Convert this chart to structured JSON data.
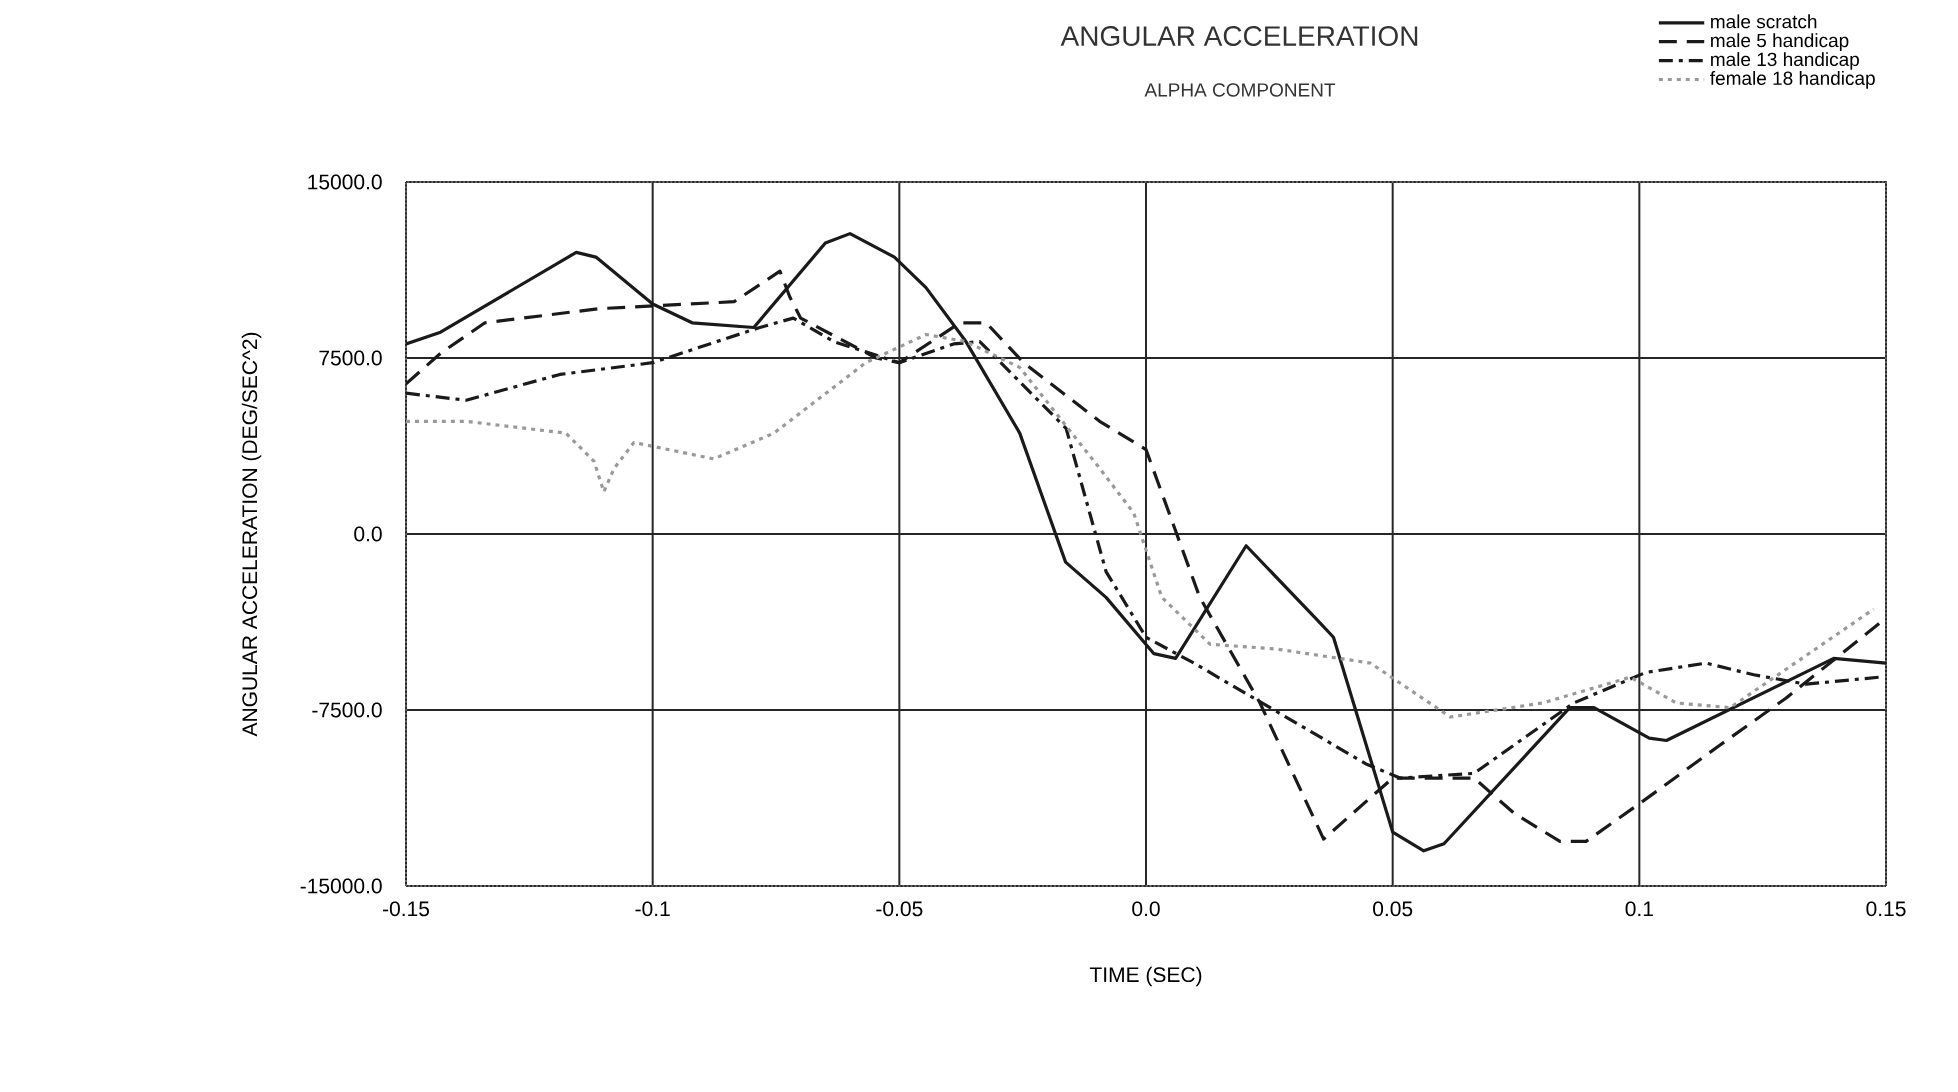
{
  "chart_data": {
    "type": "line",
    "title": "ANGULAR ACCELERATION",
    "subtitle": "ALPHA COMPONENT",
    "xlabel": "TIME (SEC)",
    "ylabel": "ANGULAR ACCELERATION (DEG/SEC^2)",
    "xlim": [
      -0.15,
      0.15
    ],
    "ylim": [
      -15000,
      15000
    ],
    "xticks": [
      -0.15,
      -0.1,
      -0.05,
      {
        "value": 0,
        "label": "0.0"
      },
      0.05,
      0.1,
      0.15
    ],
    "yticks": [
      {
        "value": -15000,
        "label": "-15000.0"
      },
      {
        "value": -7500,
        "label": "-7500.0"
      },
      {
        "value": 0,
        "label": "0.0"
      },
      {
        "value": 7500,
        "label": "7500.0"
      },
      {
        "value": 15000,
        "label": "15000.0"
      }
    ],
    "grid": true,
    "legend": "top right",
    "marker": "none",
    "series": [
      {
        "name": "male scratch",
        "color": "#1a1a1a",
        "line_style": "solid",
        "x": [
          -0.15,
          -0.143,
          -0.1155,
          -0.1115,
          -0.1,
          -0.092,
          -0.0795,
          -0.065,
          -0.06,
          -0.051,
          -0.0446,
          -0.0365,
          -0.0256,
          -0.0163,
          -0.0081,
          0.0016,
          0.006,
          0.0203,
          0.0344,
          0.038,
          0.05,
          0.0563,
          0.0604,
          0.0859,
          0.0908,
          0.102,
          0.1055,
          0.1394,
          0.15
        ],
        "values": [
          8100,
          8600,
          12000,
          11800,
          9800,
          9000,
          8800,
          12400,
          12800,
          11800,
          10500,
          8200,
          4300,
          -1200,
          -2700,
          -5100,
          -5300,
          -500,
          -3600,
          -4400,
          -12700,
          -13500,
          -13200,
          -7400,
          -7400,
          -8700,
          -8800,
          -5300,
          -5500
        ]
      },
      {
        "name": "male 5 handicap",
        "color": "#1a1a1a",
        "line_style": "dashed",
        "x": [
          -0.15,
          -0.143,
          -0.134,
          -0.111,
          -0.0835,
          -0.0742,
          -0.0722,
          -0.07,
          -0.0547,
          -0.05,
          -0.0377,
          -0.0324,
          -0.0248,
          -0.0094,
          0,
          0.0109,
          0.0231,
          0.036,
          0.05,
          0.0665,
          0.0746,
          0.0839,
          0.0892,
          0.1013,
          0.1163,
          0.1297,
          0.1487
        ],
        "values": [
          6400,
          7700,
          9000,
          9600,
          9900,
          11200,
          10100,
          9200,
          7500,
          7300,
          9000,
          9000,
          7300,
          4800,
          3600,
          -2700,
          -7200,
          -13000,
          -10400,
          -10400,
          -11900,
          -13100,
          -13100,
          -11300,
          -9000,
          -7000,
          -3800
        ]
      },
      {
        "name": "male 13 handicap",
        "color": "#1a1a1a",
        "line_style": "dashdot",
        "x": [
          -0.15,
          -0.1378,
          -0.1188,
          -0.1,
          -0.0783,
          -0.0715,
          -0.0633,
          -0.05,
          -0.039,
          -0.0337,
          -0.0162,
          -0.0081,
          0,
          0.0097,
          0.0219,
          0.0446,
          0.0515,
          0.0665,
          0.0867,
          0.1013,
          0.1135,
          0.1232,
          0.1338,
          0.1487
        ],
        "values": [
          6000,
          5700,
          6800,
          7300,
          8800,
          9200,
          8200,
          7300,
          8100,
          8200,
          4500,
          -1600,
          -4400,
          -5500,
          -7000,
          -9800,
          -10400,
          -10200,
          -7200,
          -5900,
          -5500,
          -6000,
          -6400,
          -6100
        ]
      },
      {
        "name": "female 18 handicap",
        "color": "#999999",
        "line_style": "dotted",
        "x": [
          -0.15,
          -0.1378,
          -0.1176,
          -0.1119,
          -0.1099,
          -0.1078,
          -0.1038,
          -0.0876,
          -0.0754,
          -0.0568,
          -0.0446,
          -0.0365,
          -0.0256,
          -0.0094,
          -0.0025,
          0.0032,
          0.013,
          0.0264,
          0.0455,
          0.0617,
          0.0804,
          0.0982,
          0.1075,
          0.1184,
          0.1475
        ],
        "values": [
          4800,
          4800,
          4300,
          3100,
          1800,
          2800,
          3900,
          3200,
          4300,
          7300,
          8500,
          8200,
          7100,
          2800,
          900,
          -2700,
          -4700,
          -4900,
          -5500,
          -7800,
          -7200,
          -6100,
          -7200,
          -7400,
          -3200
        ]
      }
    ]
  }
}
